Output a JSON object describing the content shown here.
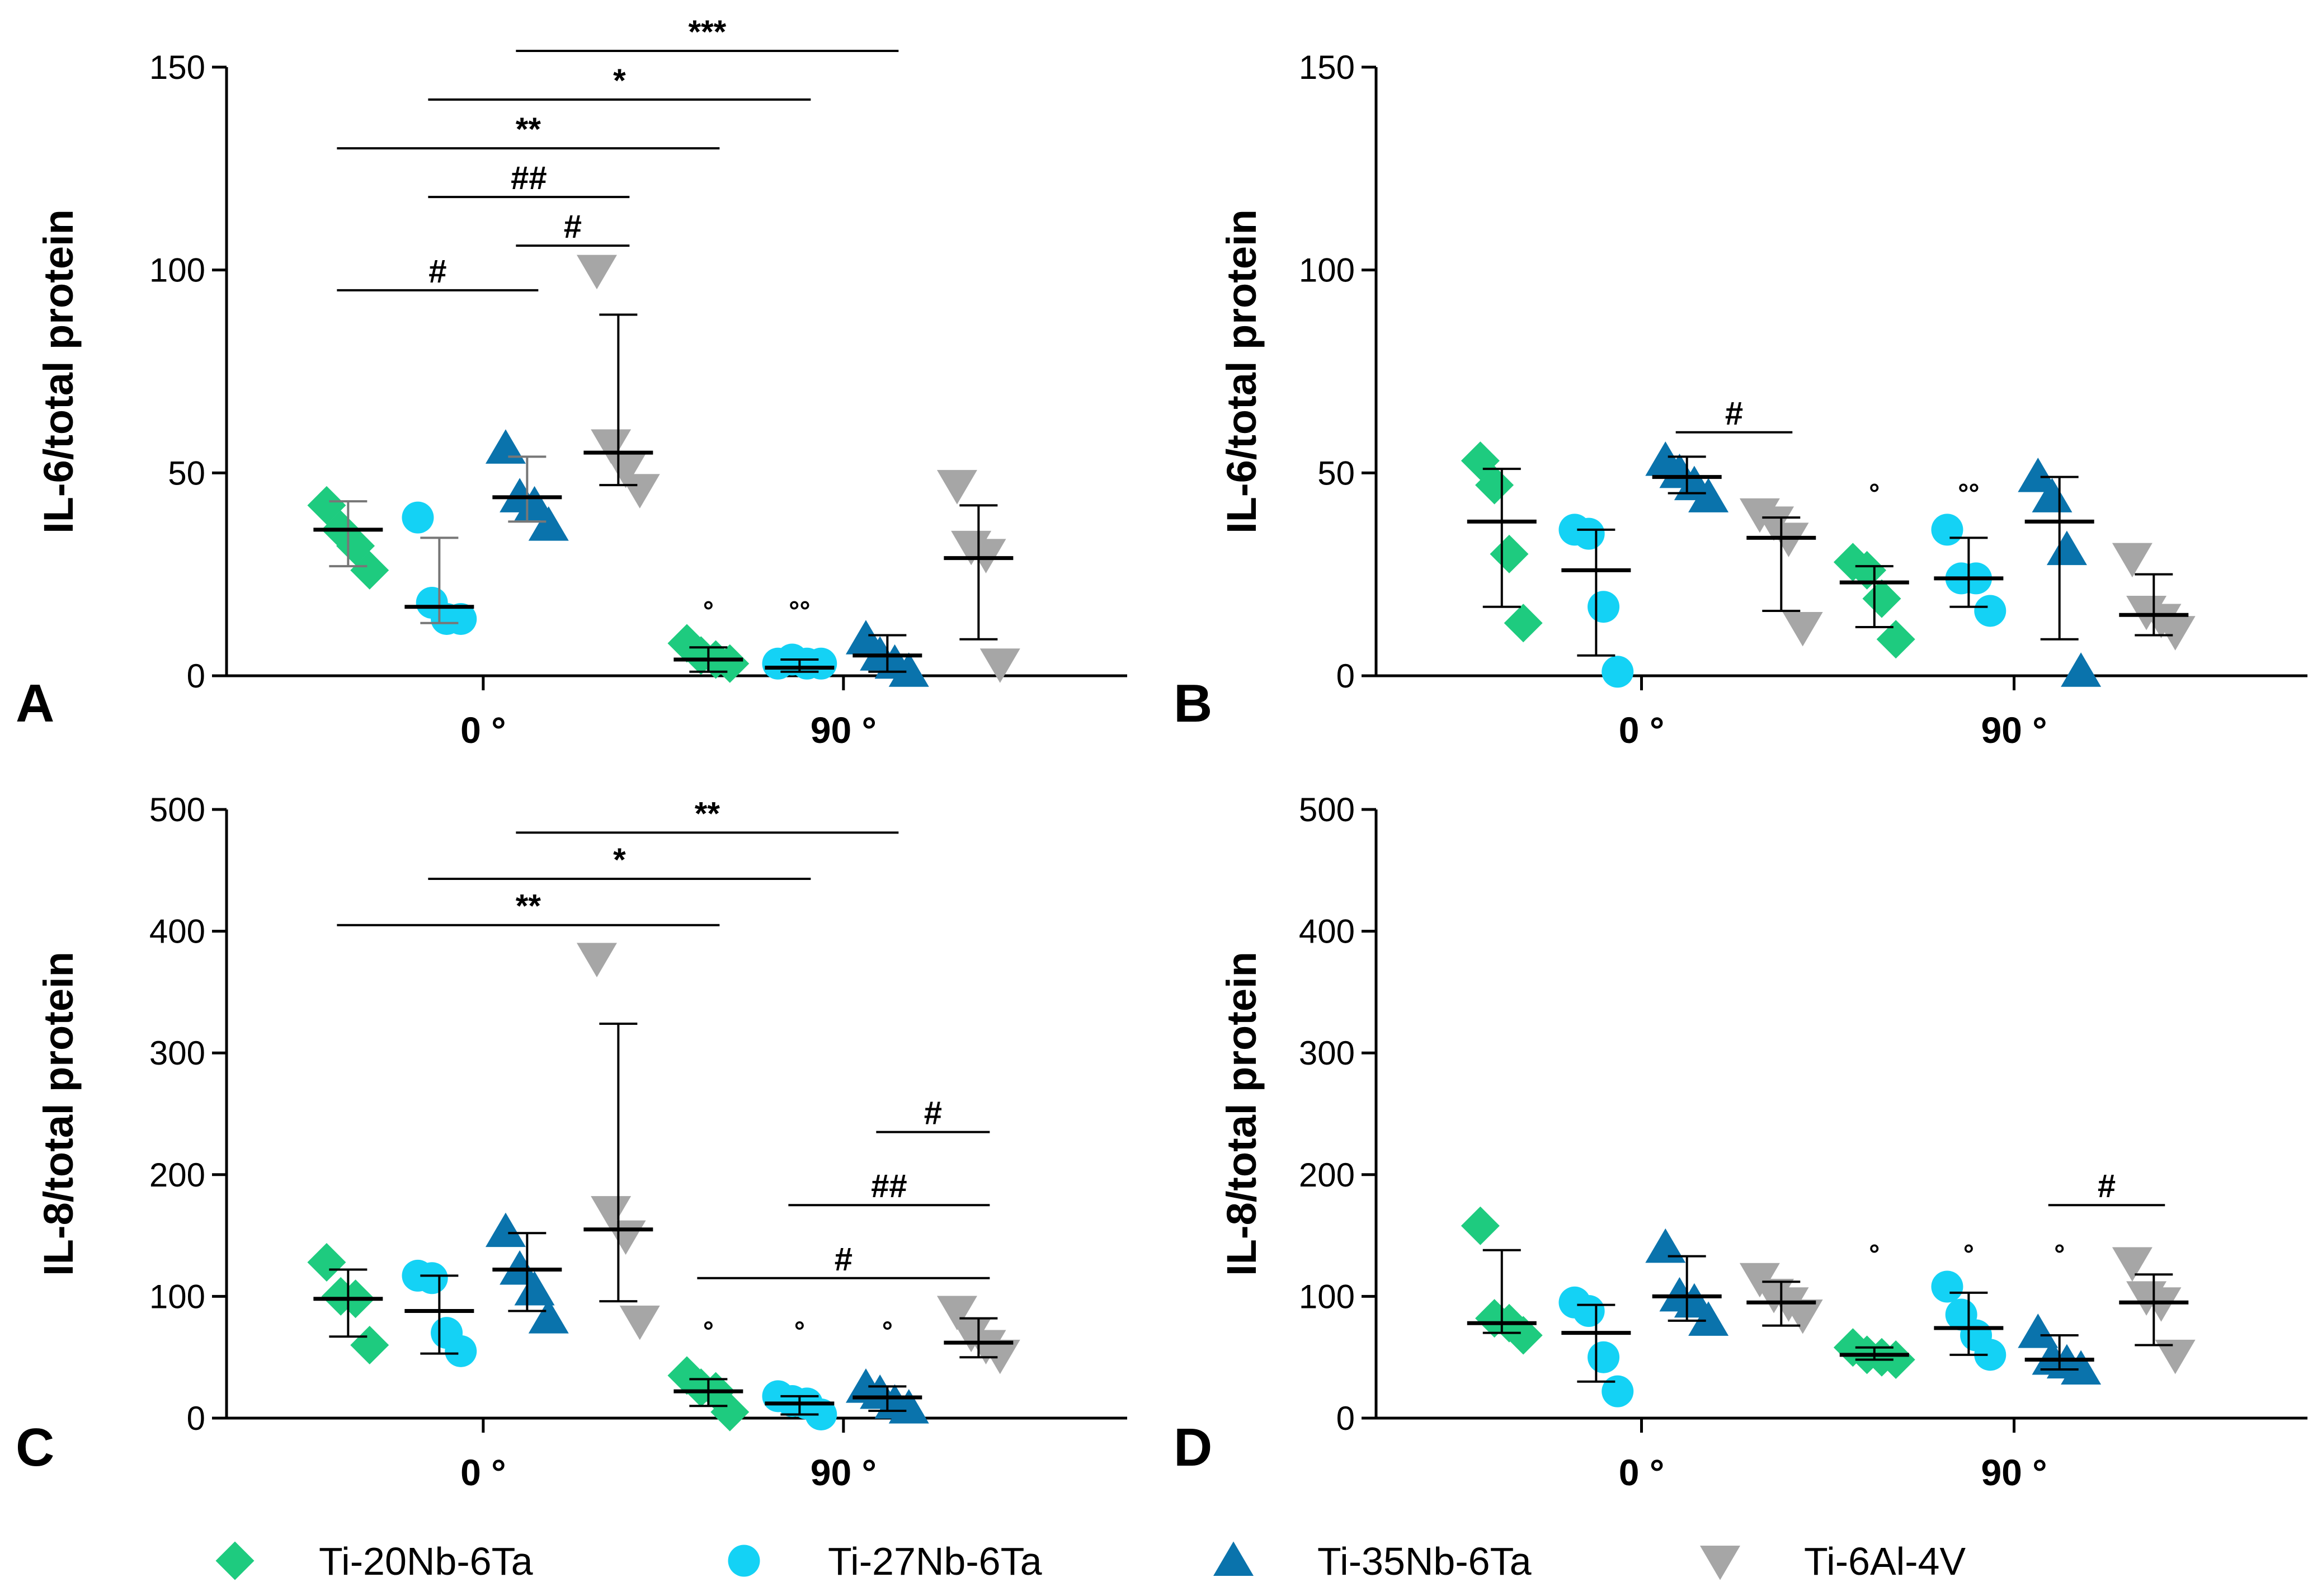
{
  "groups": [
    {
      "name": "Ti-20Nb-6Ta",
      "color": "#1ecb7f",
      "shape": "diamond"
    },
    {
      "name": "Ti-27Nb-6Ta",
      "color": "#14d2f5",
      "shape": "circle"
    },
    {
      "name": "Ti-35Nb-6Ta",
      "color": "#0a73ac",
      "shape": "triangle-up"
    },
    {
      "name": "Ti-6Al-4V",
      "color": "#a6a6a6",
      "shape": "triangle-down"
    }
  ],
  "chart_data": [
    {
      "panel": "A",
      "type": "scatter",
      "ylabel": "IL-6/total protein",
      "ylim": [
        0,
        150
      ],
      "yticks": [
        0,
        50,
        100,
        150
      ],
      "categories": [
        "0 °",
        "90 °"
      ],
      "series": [
        {
          "name": "Ti-20Nb-6Ta",
          "points": [
            [
              42,
              36,
              32,
              26
            ],
            [
              8,
              5,
              4,
              3
            ]
          ],
          "mean": [
            36,
            4
          ],
          "errLow": [
            27,
            1
          ],
          "errHigh": [
            43,
            7
          ]
        },
        {
          "name": "Ti-27Nb-6Ta",
          "points": [
            [
              39,
              18,
              14,
              14
            ],
            [
              3,
              4,
              3,
              3
            ]
          ],
          "mean": [
            17,
            2
          ],
          "errLow": [
            13,
            1
          ],
          "errHigh": [
            34,
            4
          ]
        },
        {
          "name": "Ti-35Nb-6Ta",
          "points": [
            [
              56,
              44,
              42,
              37
            ],
            [
              9,
              5,
              3,
              1
            ]
          ],
          "mean": [
            44,
            5
          ],
          "errLow": [
            38,
            1
          ],
          "errHigh": [
            54,
            10
          ]
        },
        {
          "name": "Ti-6Al-4V",
          "points": [
            [
              100,
              57,
              51,
              46
            ],
            [
              47,
              32,
              30,
              3
            ]
          ],
          "mean": [
            55,
            29
          ],
          "errLow": [
            47,
            9
          ],
          "errHigh": [
            89,
            42
          ]
        }
      ],
      "significance": [
        {
          "label": "#",
          "y": 95,
          "from": [
            0,
            0
          ],
          "to": [
            0,
            2
          ]
        },
        {
          "label": "#",
          "y": 106,
          "from": [
            0,
            2
          ],
          "to": [
            0,
            3
          ]
        },
        {
          "label": "##",
          "y": 118,
          "from": [
            0,
            1
          ],
          "to": [
            0,
            3
          ]
        },
        {
          "label": "**",
          "y": 130,
          "from": [
            0,
            0
          ],
          "to": [
            1,
            0
          ]
        },
        {
          "label": "*",
          "y": 142,
          "from": [
            0,
            1
          ],
          "to": [
            1,
            1
          ]
        },
        {
          "label": "***",
          "y": 154,
          "from": [
            0,
            2
          ],
          "to": [
            1,
            2
          ]
        }
      ],
      "group_marks": [
        {
          "label": "°",
          "group": [
            1,
            0
          ],
          "y": 17
        },
        {
          "label": "°°",
          "group": [
            1,
            1
          ],
          "y": 17
        }
      ]
    },
    {
      "panel": "B",
      "type": "scatter",
      "ylabel": "IL-6/total protein",
      "ylim": [
        0,
        150
      ],
      "yticks": [
        0,
        50,
        100,
        150
      ],
      "categories": [
        "0 °",
        "90 °"
      ],
      "series": [
        {
          "name": "Ti-20Nb-6Ta",
          "points": [
            [
              53,
              47,
              30,
              13
            ],
            [
              28,
              26,
              19,
              9
            ]
          ],
          "mean": [
            38,
            23
          ],
          "errLow": [
            17,
            12
          ],
          "errHigh": [
            51,
            27
          ]
        },
        {
          "name": "Ti-27Nb-6Ta",
          "points": [
            [
              36,
              35,
              17,
              1
            ],
            [
              36,
              24,
              24,
              16
            ]
          ],
          "mean": [
            26,
            24
          ],
          "errLow": [
            5,
            17
          ],
          "errHigh": [
            36,
            34
          ]
        },
        {
          "name": "Ti-35Nb-6Ta",
          "points": [
            [
              53,
              50,
              47,
              44
            ],
            [
              49,
              44,
              31,
              1
            ]
          ],
          "mean": [
            49,
            38
          ],
          "errLow": [
            45,
            9
          ],
          "errHigh": [
            54,
            49
          ]
        },
        {
          "name": "Ti-6Al-4V",
          "points": [
            [
              40,
              38,
              34,
              12
            ],
            [
              29,
              16,
              14,
              11
            ]
          ],
          "mean": [
            34,
            15
          ],
          "errLow": [
            16,
            10
          ],
          "errHigh": [
            39,
            25
          ]
        }
      ],
      "significance": [
        {
          "label": "#",
          "y": 60,
          "from": [
            0,
            2
          ],
          "to": [
            0,
            3
          ]
        }
      ],
      "group_marks": [
        {
          "label": "°",
          "group": [
            1,
            0
          ],
          "y": 46
        },
        {
          "label": "°°",
          "group": [
            1,
            1
          ],
          "y": 46
        }
      ]
    },
    {
      "panel": "C",
      "type": "scatter",
      "ylabel": "IL-8/total protein",
      "ylim": [
        0,
        500
      ],
      "yticks": [
        0,
        100,
        200,
        300,
        400,
        500
      ],
      "categories": [
        "0 °",
        "90 °"
      ],
      "series": [
        {
          "name": "Ti-20Nb-6Ta",
          "points": [
            [
              128,
              100,
              98,
              60
            ],
            [
              35,
              25,
              22,
              5
            ]
          ],
          "mean": [
            98,
            22
          ],
          "errLow": [
            67,
            10
          ],
          "errHigh": [
            122,
            32
          ]
        },
        {
          "name": "Ti-27Nb-6Ta",
          "points": [
            [
              117,
              115,
              70,
              55
            ],
            [
              18,
              14,
              12,
              3
            ]
          ],
          "mean": [
            88,
            12
          ],
          "errLow": [
            53,
            3
          ],
          "errHigh": [
            117,
            18
          ]
        },
        {
          "name": "Ti-35Nb-6Ta",
          "points": [
            [
              153,
              122,
              105,
              82
            ],
            [
              25,
              20,
              12,
              8
            ]
          ],
          "mean": [
            122,
            17
          ],
          "errLow": [
            88,
            6
          ],
          "errHigh": [
            152,
            26
          ]
        },
        {
          "name": "Ti-6Al-4V",
          "points": [
            [
              378,
              170,
              150,
              80
            ],
            [
              88,
              70,
              60,
              52
            ]
          ],
          "mean": [
            155,
            62
          ],
          "errLow": [
            96,
            50
          ],
          "errHigh": [
            324,
            82
          ]
        }
      ],
      "significance": [
        {
          "label": "#",
          "y": 235,
          "from": [
            1,
            2
          ],
          "to": [
            1,
            3
          ]
        },
        {
          "label": "##",
          "y": 175,
          "from": [
            1,
            1
          ],
          "to": [
            1,
            3
          ]
        },
        {
          "label": "#",
          "y": 115,
          "from": [
            1,
            0
          ],
          "to": [
            1,
            3
          ]
        },
        {
          "label": "**",
          "y": 405,
          "from": [
            0,
            0
          ],
          "to": [
            1,
            0
          ]
        },
        {
          "label": "*",
          "y": 443,
          "from": [
            0,
            1
          ],
          "to": [
            1,
            1
          ]
        },
        {
          "label": "**",
          "y": 481,
          "from": [
            0,
            2
          ],
          "to": [
            1,
            2
          ]
        }
      ],
      "group_marks": [
        {
          "label": "°",
          "group": [
            1,
            0
          ],
          "y": 75
        },
        {
          "label": "°",
          "group": [
            1,
            1
          ],
          "y": 75
        },
        {
          "label": "°",
          "group": [
            1,
            2
          ],
          "y": 75
        }
      ]
    },
    {
      "panel": "D",
      "type": "scatter",
      "ylabel": "IL-8/total protein",
      "ylim": [
        0,
        500
      ],
      "yticks": [
        0,
        100,
        200,
        300,
        400,
        500
      ],
      "categories": [
        "0 °",
        "90 °"
      ],
      "series": [
        {
          "name": "Ti-20Nb-6Ta",
          "points": [
            [
              158,
              82,
              78,
              68
            ],
            [
              58,
              52,
              50,
              48
            ]
          ],
          "mean": [
            78,
            52
          ],
          "errLow": [
            70,
            48
          ],
          "errHigh": [
            138,
            58
          ]
        },
        {
          "name": "Ti-27Nb-6Ta",
          "points": [
            [
              95,
              88,
              50,
              22
            ],
            [
              108,
              85,
              68,
              52
            ]
          ],
          "mean": [
            70,
            74
          ],
          "errLow": [
            30,
            52
          ],
          "errHigh": [
            93,
            103
          ]
        },
        {
          "name": "Ti-35Nb-6Ta",
          "points": [
            [
              140,
              100,
              95,
              80
            ],
            [
              70,
              48,
              45,
              40
            ]
          ],
          "mean": [
            100,
            48
          ],
          "errLow": [
            80,
            40
          ],
          "errHigh": [
            133,
            68
          ]
        },
        {
          "name": "Ti-6Al-4V",
          "points": [
            [
              115,
              102,
              95,
              85
            ],
            [
              128,
              100,
              95,
              52
            ]
          ],
          "mean": [
            95,
            95
          ],
          "errLow": [
            76,
            60
          ],
          "errHigh": [
            112,
            118
          ]
        }
      ],
      "significance": [
        {
          "label": "#",
          "y": 175,
          "from": [
            1,
            2
          ],
          "to": [
            1,
            3
          ]
        }
      ],
      "group_marks": [
        {
          "label": "°",
          "group": [
            1,
            0
          ],
          "y": 138
        },
        {
          "label": "°",
          "group": [
            1,
            1
          ],
          "y": 138
        },
        {
          "label": "°",
          "group": [
            1,
            2
          ],
          "y": 138
        }
      ]
    }
  ]
}
